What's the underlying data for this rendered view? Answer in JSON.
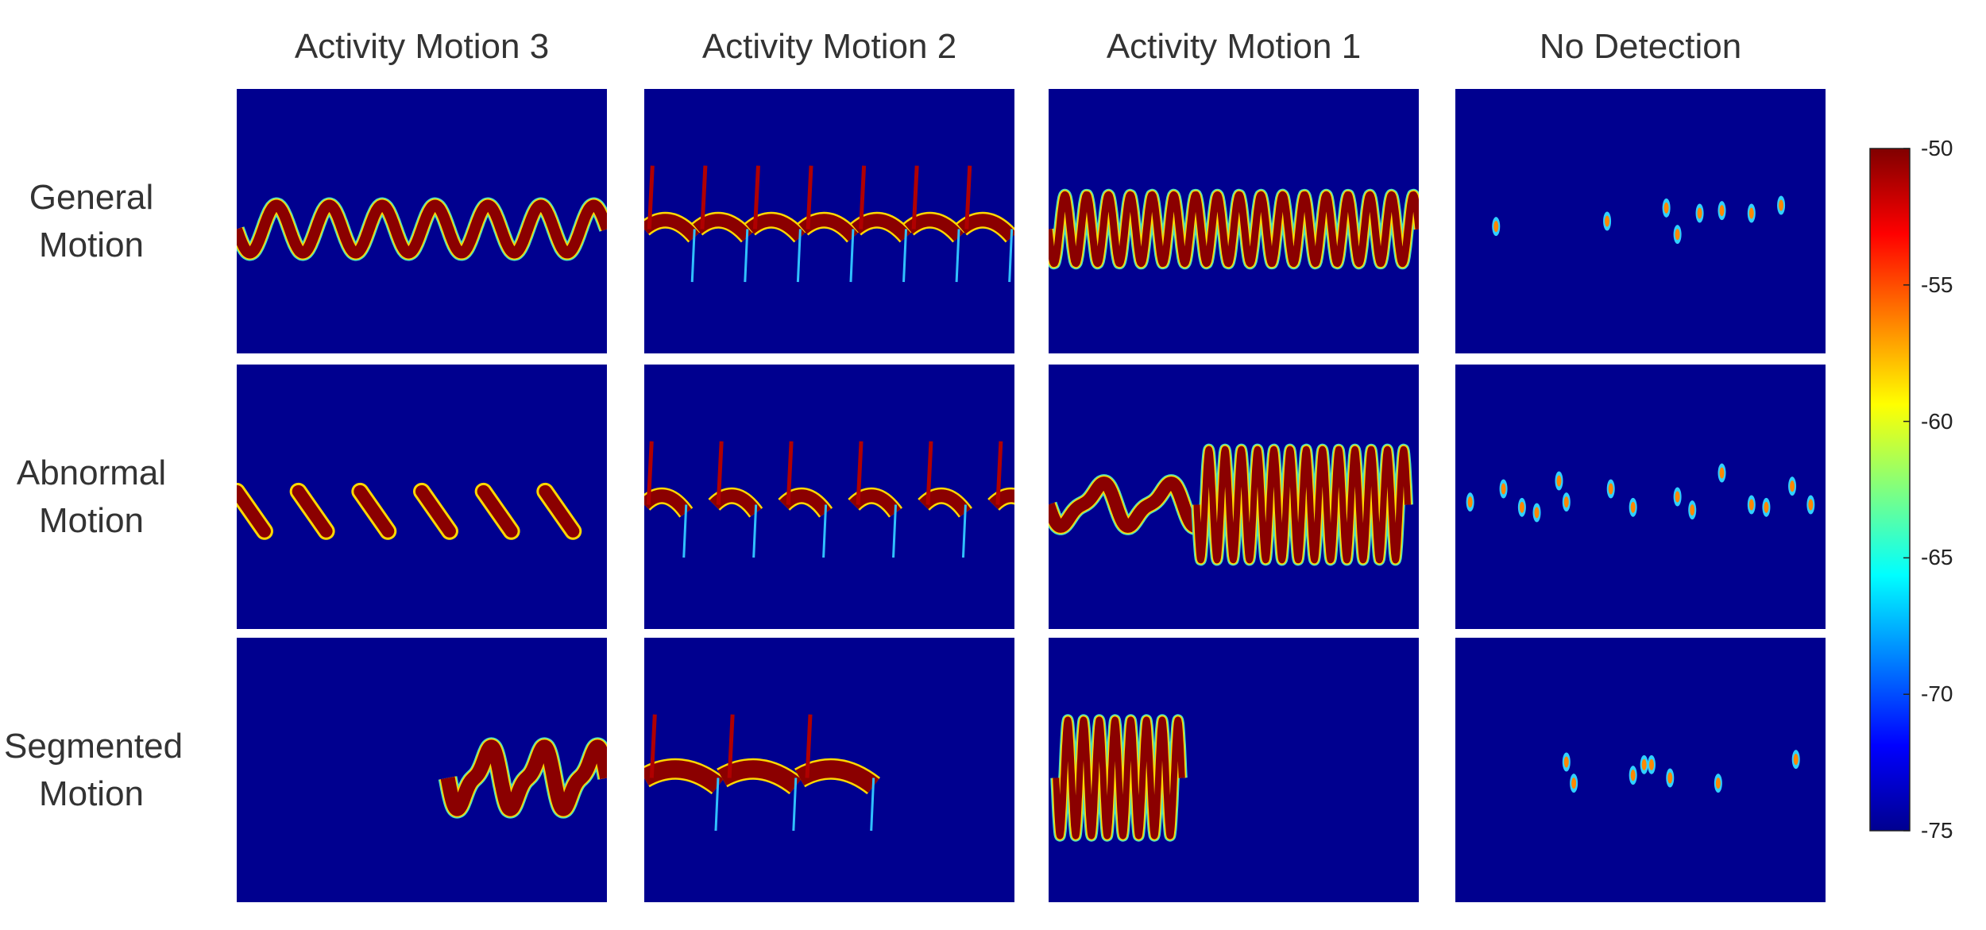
{
  "chart_data": {
    "type": "spectrogram-grid",
    "columns": [
      "Activity Motion 3",
      "Activity Motion 2",
      "Activity Motion 1",
      "No Detection"
    ],
    "rows": [
      "General Motion",
      "Abnormal Motion",
      "Segmented Motion"
    ],
    "colorbar": {
      "lim": [
        -75,
        -50
      ],
      "ticks": [
        -50,
        -55,
        -60,
        -65,
        -70,
        -75
      ]
    }
  }
}
